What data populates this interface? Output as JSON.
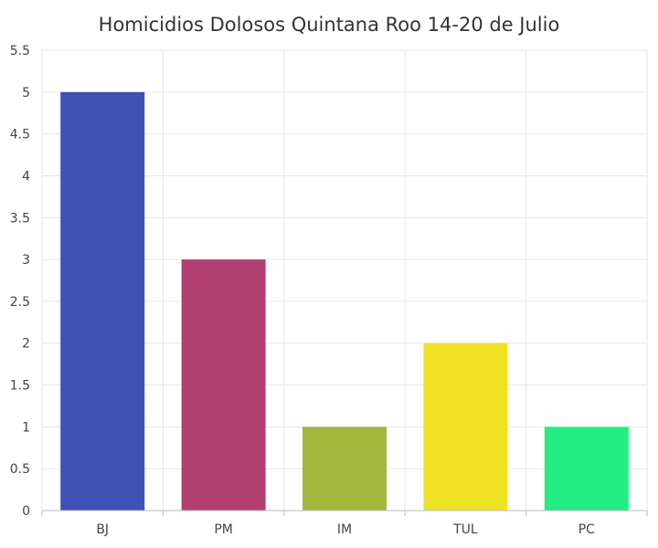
{
  "chart_data": {
    "type": "bar",
    "title": "Homicidios Dolosos Quintana Roo 14-20 de Julio",
    "xlabel": "",
    "ylabel": "",
    "categories": [
      "BJ",
      "PM",
      "IM",
      "TUL",
      "PC"
    ],
    "values": [
      5,
      3,
      1,
      2,
      1
    ],
    "colors": [
      "#3f51b5",
      "#b23f71",
      "#a3b73f",
      "#eee124",
      "#24ee83"
    ],
    "ylim": [
      0,
      5.5
    ],
    "yticks": [
      0,
      0.5,
      1,
      1.5,
      2,
      2.5,
      3,
      3.5,
      4,
      4.5,
      5,
      5.5
    ],
    "ytick_labels": [
      "0",
      "0.5",
      "1",
      "1.5",
      "2",
      "2.5",
      "3",
      "3.5",
      "4",
      "4.5",
      "5",
      "5.5"
    ],
    "grid": true,
    "legend": "none"
  }
}
